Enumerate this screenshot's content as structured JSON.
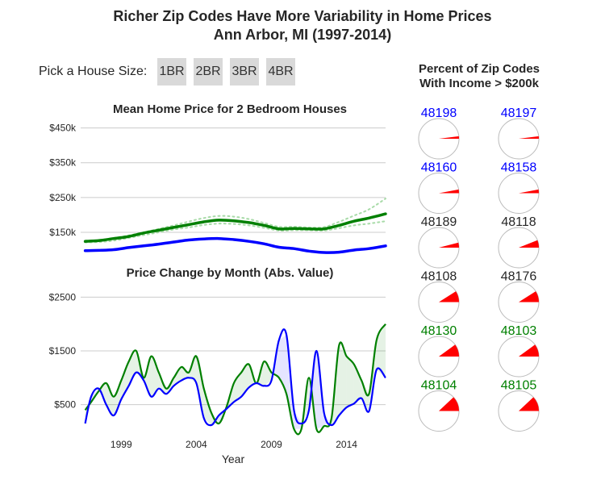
{
  "header": {
    "title_line1": "Richer Zip Codes Have More Variability in Home Prices",
    "title_line2": "Ann Arbor, MI (1997-2014)"
  },
  "controls": {
    "label": "Pick a House Size:",
    "buttons": [
      "1BR",
      "2BR",
      "3BR",
      "4BR"
    ]
  },
  "colors": {
    "rich": "#008000",
    "poor": "#0000ff",
    "neutral": "#262626",
    "pie": "#ff0000"
  },
  "chart_data": [
    {
      "type": "line",
      "title": "Mean Home Price for 2 Bedroom Houses",
      "xlabel": "",
      "ylabel": "",
      "ytick_labels": [
        "$150k",
        "$250k",
        "$350k",
        "$450k"
      ],
      "yticks": [
        150,
        250,
        350,
        450
      ],
      "ylim": [
        85,
        470
      ],
      "xlim": [
        1996.3,
        2016.6
      ],
      "grid": true,
      "series": [
        {
          "color": "#0000ff",
          "style": "solid",
          "x": [
            1996.6,
            1997.5,
            1998.5,
            1999.5,
            2000.5,
            2001.5,
            2002.5,
            2003.5,
            2004.5,
            2005.5,
            2006.5,
            2007.5,
            2008.5,
            2009.5,
            2010.5,
            2011.5,
            2012.5,
            2013.5,
            2014.5,
            2015.5,
            2016.6
          ],
          "y": [
            97,
            98,
            100,
            106,
            111,
            116,
            122,
            128,
            131,
            132,
            129,
            124,
            117,
            107,
            103,
            96,
            92,
            93,
            99,
            103,
            111
          ]
        },
        {
          "color": "#008000",
          "style": "solid",
          "x": [
            1996.6,
            1997.5,
            1998.5,
            1999.5,
            2000.5,
            2001.5,
            2002.5,
            2003.5,
            2004.5,
            2005.5,
            2006.5,
            2007.5,
            2008.5,
            2009.5,
            2010.5,
            2011.5,
            2012.5,
            2013.5,
            2014.5,
            2015.5,
            2016.6
          ],
          "y": [
            124,
            126,
            132,
            138,
            148,
            156,
            164,
            172,
            180,
            185,
            183,
            178,
            170,
            160,
            161,
            160,
            160,
            170,
            182,
            191,
            203
          ]
        },
        {
          "color": "#a8dba8",
          "style": "dotted",
          "x": [
            1996.6,
            1997.5,
            1998.5,
            1999.5,
            2000.5,
            2001.5,
            2002.5,
            2003.5,
            2004.5,
            2005.5,
            2006.5,
            2007.5,
            2008.5,
            2009.5,
            2010.5,
            2011.5,
            2012.5,
            2013.5,
            2014.5,
            2015.5,
            2016.6
          ],
          "y": [
            126,
            128,
            134,
            141,
            150,
            160,
            170,
            181,
            191,
            197,
            195,
            188,
            177,
            166,
            166,
            164,
            165,
            180,
            198,
            216,
            247
          ]
        },
        {
          "color": "#a8dba8",
          "style": "dotted",
          "x": [
            1996.6,
            1997.5,
            1998.5,
            1999.5,
            2000.5,
            2001.5,
            2002.5,
            2003.5,
            2004.5,
            2005.5,
            2006.5,
            2007.5,
            2008.5,
            2009.5,
            2010.5,
            2011.5,
            2012.5,
            2013.5,
            2014.5,
            2015.5,
            2016.6
          ],
          "y": [
            121,
            122,
            126,
            134,
            142,
            150,
            158,
            164,
            171,
            175,
            174,
            170,
            163,
            155,
            156,
            156,
            155,
            162,
            170,
            175,
            182
          ]
        }
      ]
    },
    {
      "type": "area",
      "title": "Price Change by Month (Abs. Value)",
      "xlabel": "Year",
      "ylabel": "",
      "ytick_labels": [
        "$500",
        "$1500",
        "$2500"
      ],
      "yticks": [
        500,
        1500,
        2500
      ],
      "ylim": [
        0,
        2700
      ],
      "xlim": [
        1996.3,
        2016.6
      ],
      "xticks": [
        1999,
        2004,
        2009,
        2014
      ],
      "xtick_labels": [
        "1999",
        "2004",
        "2009",
        "2014"
      ],
      "grid": true,
      "series": [
        {
          "color": "#0000ff",
          "x": [
            1996.6,
            1997.0,
            1997.5,
            1998.0,
            1998.5,
            1999.0,
            1999.5,
            2000.0,
            2000.5,
            2001.0,
            2001.5,
            2002.0,
            2002.5,
            2003.0,
            2003.5,
            2004.0,
            2004.5,
            2005.0,
            2005.5,
            2006.0,
            2006.5,
            2007.0,
            2007.5,
            2008.0,
            2008.5,
            2009.0,
            2009.5,
            2010.0,
            2010.5,
            2011.0,
            2011.5,
            2012.0,
            2012.5,
            2013.0,
            2013.5,
            2014.0,
            2014.5,
            2015.0,
            2015.5,
            2016.0,
            2016.6
          ],
          "y": [
            150,
            650,
            800,
            500,
            300,
            600,
            850,
            1100,
            950,
            650,
            800,
            700,
            850,
            950,
            1000,
            900,
            250,
            120,
            300,
            420,
            550,
            650,
            820,
            900,
            850,
            950,
            1700,
            1800,
            400,
            150,
            400,
            1500,
            350,
            120,
            300,
            450,
            520,
            620,
            380,
            1150,
            1000
          ]
        },
        {
          "color": "#008000",
          "x": [
            1996.6,
            1997.0,
            1997.5,
            1998.0,
            1998.5,
            1999.0,
            1999.5,
            2000.0,
            2000.5,
            2001.0,
            2001.5,
            2002.0,
            2002.5,
            2003.0,
            2003.5,
            2004.0,
            2004.5,
            2005.0,
            2005.5,
            2006.0,
            2006.5,
            2007.0,
            2007.5,
            2008.0,
            2008.5,
            2009.0,
            2009.5,
            2010.0,
            2010.5,
            2011.0,
            2011.5,
            2012.0,
            2012.5,
            2013.0,
            2013.5,
            2014.0,
            2014.5,
            2015.0,
            2015.5,
            2016.0,
            2016.6
          ],
          "y": [
            400,
            550,
            750,
            900,
            650,
            950,
            1300,
            1500,
            1000,
            1400,
            1100,
            800,
            1000,
            1200,
            1100,
            1400,
            800,
            350,
            150,
            450,
            900,
            1100,
            1250,
            900,
            1300,
            1100,
            1000,
            700,
            50,
            50,
            1000,
            50,
            100,
            250,
            1600,
            1400,
            1250,
            950,
            700,
            1700,
            2000
          ]
        }
      ]
    }
  ],
  "pies": {
    "title_line1": "Percent of Zip Codes",
    "title_line2": "With Income > $200k",
    "items": [
      {
        "zip": "48198",
        "color": "#0000ff",
        "pct": 0.02
      },
      {
        "zip": "48197",
        "color": "#0000ff",
        "pct": 0.02
      },
      {
        "zip": "48160",
        "color": "#0000ff",
        "pct": 0.03
      },
      {
        "zip": "48158",
        "color": "#0000ff",
        "pct": 0.03
      },
      {
        "zip": "48189",
        "color": "#262626",
        "pct": 0.04
      },
      {
        "zip": "48118",
        "color": "#262626",
        "pct": 0.06
      },
      {
        "zip": "48108",
        "color": "#262626",
        "pct": 0.09
      },
      {
        "zip": "48176",
        "color": "#262626",
        "pct": 0.09
      },
      {
        "zip": "48130",
        "color": "#008000",
        "pct": 0.1
      },
      {
        "zip": "48103",
        "color": "#008000",
        "pct": 0.1
      },
      {
        "zip": "48104",
        "color": "#008000",
        "pct": 0.12
      },
      {
        "zip": "48105",
        "color": "#008000",
        "pct": 0.12
      }
    ]
  }
}
